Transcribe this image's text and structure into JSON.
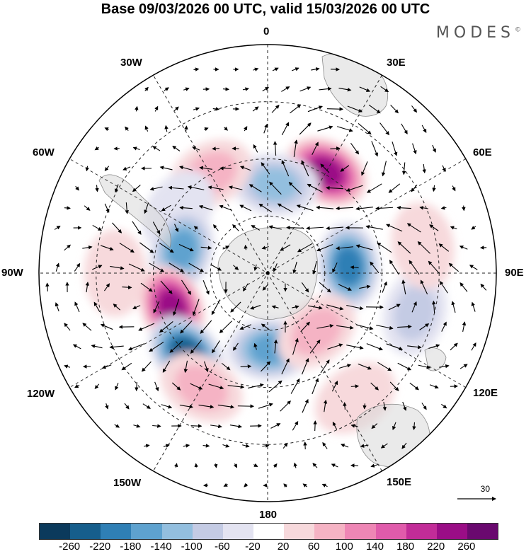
{
  "title": "Base 09/03/2026 00 UTC, valid 15/03/2026 00 UTC",
  "brand": "MODES",
  "brand_mark": "©",
  "longitude_labels": {
    "n0": "0",
    "n30e": "30E",
    "n60e": "60E",
    "n90e": "90E",
    "n120e": "120E",
    "n150e": "150E",
    "n180": "180",
    "n150w": "150W",
    "n120w": "120W",
    "n90w": "90W",
    "n60w": "60W",
    "n30w": "30W"
  },
  "reference_vector_label": "30",
  "colorbar": {
    "colors": [
      "#0b3a5c",
      "#165e8c",
      "#2f7fb5",
      "#5ea2cf",
      "#93bfdf",
      "#c4cbe4",
      "#e3e3f1",
      "#ffffff",
      "#f7d9dc",
      "#f5b3c4",
      "#ee86b5",
      "#e05bab",
      "#c22c98",
      "#9a0d86",
      "#6a096f"
    ],
    "tick_labels": [
      "-260",
      "-220",
      "-180",
      "-140",
      "-100",
      "-60",
      "-20",
      "20",
      "60",
      "100",
      "140",
      "180",
      "220",
      "260"
    ]
  },
  "anomaly_centers": [
    {
      "lon": 30,
      "lat": -44,
      "value": 230
    },
    {
      "lon": 85,
      "lat": -58,
      "value": -220
    },
    {
      "lon": 5,
      "lat": -55,
      "value": -110
    },
    {
      "lon": -30,
      "lat": -45,
      "value": 90
    },
    {
      "lon": -55,
      "lat": -47,
      "value": -60
    },
    {
      "lon": -75,
      "lat": -55,
      "value": -150
    },
    {
      "lon": -110,
      "lat": -50,
      "value": 240
    },
    {
      "lon": -135,
      "lat": -45,
      "value": -240
    },
    {
      "lon": 178,
      "lat": -60,
      "value": -170
    },
    {
      "lon": 140,
      "lat": -60,
      "value": 100
    },
    {
      "lon": 105,
      "lat": -30,
      "value": -90
    },
    {
      "lon": 145,
      "lat": -30,
      "value": 60
    },
    {
      "lon": -150,
      "lat": -38,
      "value": 90
    },
    {
      "lon": -90,
      "lat": -30,
      "value": 60
    },
    {
      "lon": 80,
      "lat": -28,
      "value": 50
    }
  ]
}
